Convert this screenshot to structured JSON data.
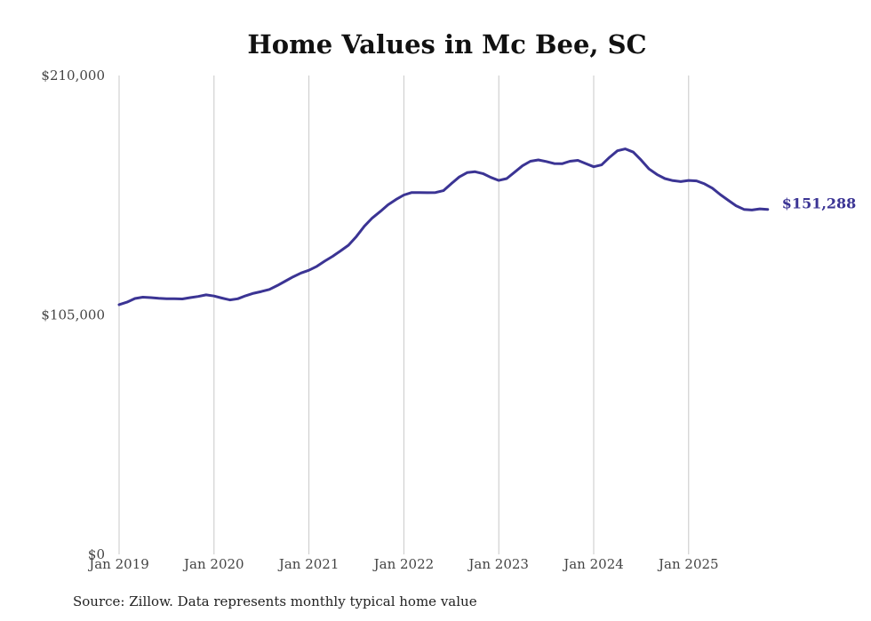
{
  "chart_data": {
    "type": "line",
    "title": "Home Values in Mc Bee, SC",
    "xlabel": "",
    "ylabel": "",
    "ylim": [
      0,
      210000
    ],
    "yticks": [
      {
        "value": 0,
        "label": "$0"
      },
      {
        "value": 105000,
        "label": "$105,000"
      },
      {
        "value": 210000,
        "label": "$210,000"
      }
    ],
    "xticks": [
      {
        "index": 0,
        "label": "Jan 2019"
      },
      {
        "index": 12,
        "label": "Jan 2020"
      },
      {
        "index": 24,
        "label": "Jan 2021"
      },
      {
        "index": 36,
        "label": "Jan 2022"
      },
      {
        "index": 48,
        "label": "Jan 2023"
      },
      {
        "index": 60,
        "label": "Jan 2024"
      },
      {
        "index": 72,
        "label": "Jan 2025"
      }
    ],
    "grid": "vertical",
    "color": "#3b3494",
    "series": [
      {
        "name": "Typical home value",
        "start": "Jan 2019",
        "frequency": "monthly",
        "values": [
          109500,
          110600,
          112200,
          112800,
          112600,
          112300,
          112100,
          112100,
          112000,
          112600,
          113100,
          113800,
          113300,
          112400,
          111600,
          112100,
          113400,
          114500,
          115300,
          116200,
          117900,
          119800,
          121700,
          123400,
          124600,
          126300,
          128600,
          130700,
          133100,
          135600,
          139400,
          143900,
          147500,
          150300,
          153300,
          155600,
          157600,
          158700,
          158700,
          158600,
          158700,
          159500,
          162600,
          165500,
          167400,
          167800,
          167000,
          165300,
          164000,
          164800,
          167600,
          170400,
          172400,
          173000,
          172300,
          171400,
          171300,
          172400,
          172800,
          171400,
          170000,
          170800,
          174100,
          177000,
          177800,
          176400,
          172900,
          169000,
          166600,
          164800,
          163900,
          163500,
          164000,
          163800,
          162500,
          160600,
          157800,
          155300,
          152900,
          151300,
          151000,
          151500,
          151288
        ]
      }
    ],
    "end_label": "$151,288",
    "source": "Source: Zillow. Data represents monthly typical home value"
  }
}
